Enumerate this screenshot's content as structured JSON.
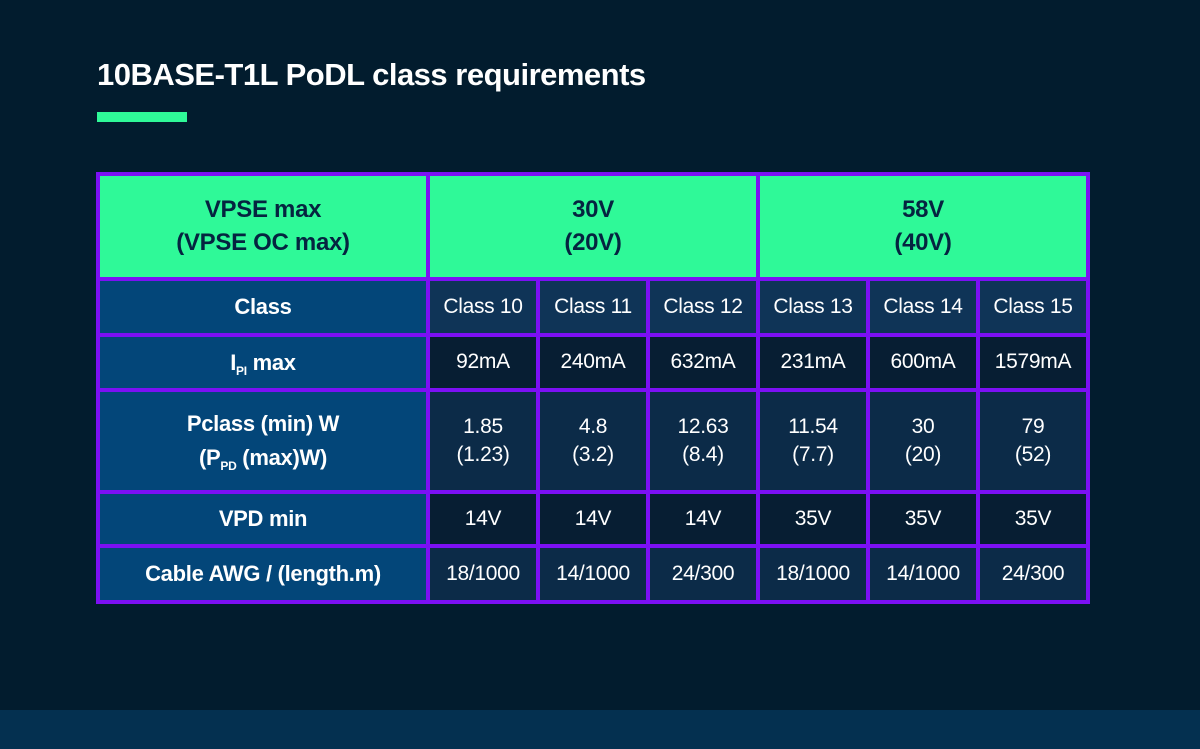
{
  "page": {
    "title": "10BASE-T1L PoDL class requirements",
    "colors": {
      "background": "#021C2E",
      "footer_strip": "#043050",
      "accent_green": "#2FF998",
      "border_purple": "#7C10F4",
      "label_col_blue": "#034679",
      "row_class": "#0F3457",
      "row_mid": "#0C2B48",
      "row_dark": "#071E33",
      "header_text": "#052440",
      "text": "#FFFFFF"
    }
  },
  "chart_data": {
    "type": "table",
    "title": "10BASE-T1L PoDL class requirements",
    "header": {
      "corner_line1": "VPSE max",
      "corner_line2": "(VPSE OC max)",
      "group1_line1": "30V",
      "group1_line2": "(20V)",
      "group2_line1": "58V",
      "group2_line2": "(40V)"
    },
    "column_groups": [
      {
        "label": "30V (20V)",
        "columns": [
          "Class 10",
          "Class 11",
          "Class 12"
        ]
      },
      {
        "label": "58V (40V)",
        "columns": [
          "Class 13",
          "Class 14",
          "Class 15"
        ]
      }
    ],
    "rows": [
      {
        "label": "Class",
        "values": [
          "Class 10",
          "Class 11",
          "Class 12",
          "Class 13",
          "Class 14",
          "Class 15"
        ]
      },
      {
        "label_base": "I",
        "label_sub": "PI",
        "label_suffix": " max",
        "values": [
          "92mA",
          "240mA",
          "632mA",
          "231mA",
          "600mA",
          "1579mA"
        ]
      },
      {
        "label_line1": "Pclass (min) W",
        "label2_base": "(P",
        "label2_sub": "PD",
        "label2_suffix": " (max)W)",
        "values_line1": [
          "1.85",
          "4.8",
          "12.63",
          "11.54",
          "30",
          "79"
        ],
        "values_line2": [
          "(1.23)",
          "(3.2)",
          "(8.4)",
          "(7.7)",
          "(20)",
          "(52)"
        ]
      },
      {
        "label": "VPD min",
        "values": [
          "14V",
          "14V",
          "14V",
          "35V",
          "35V",
          "35V"
        ]
      },
      {
        "label": "Cable AWG / (length.m)",
        "values": [
          "18/1000",
          "14/1000",
          "24/300",
          "18/1000",
          "14/1000",
          "24/300"
        ]
      }
    ]
  }
}
